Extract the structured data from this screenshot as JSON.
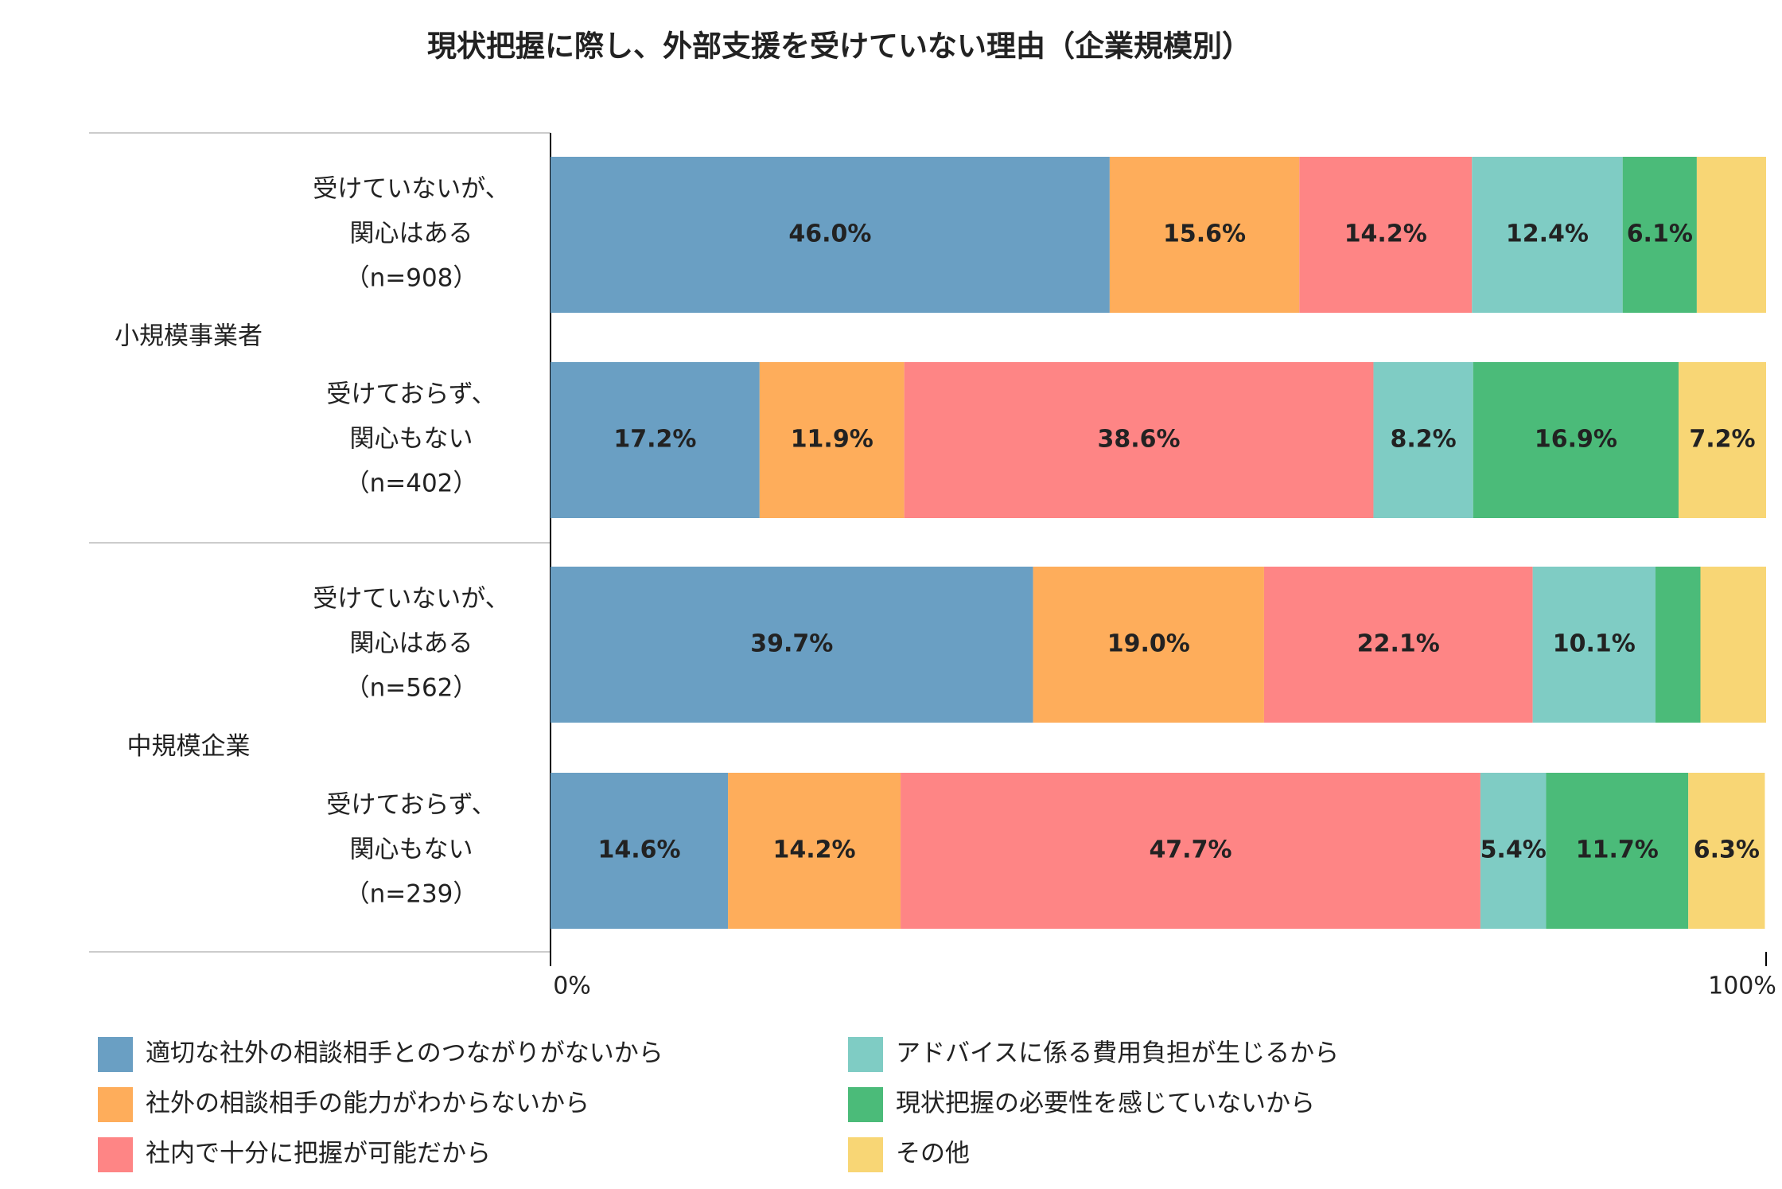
{
  "chart_data": {
    "type": "stacked-barh",
    "title": "現状把握に際し、外部支援を受けていない理由（企業規模別）",
    "groups": [
      "小規模事業者",
      "中規模企業"
    ],
    "categories": [
      [
        "受けていないが、",
        "関心はある",
        "（n=908）"
      ],
      [
        "受けておらず、",
        "関心もない",
        "（n=402）"
      ],
      [
        "受けていないが、",
        "関心はある",
        "（n=562）"
      ],
      [
        "受けておらず、",
        "関心もない",
        "（n=239）"
      ]
    ],
    "series": [
      {
        "name": "適切な社外の相談相手とのつながりがないから",
        "color": "#6a9fc3",
        "values": [
          46.0,
          17.2,
          39.7,
          14.6
        ],
        "value_labels": [
          "46.0%",
          "17.2%",
          "39.7%",
          "14.6%"
        ]
      },
      {
        "name": "社外の相談相手の能力がわからないから",
        "color": "#fead5b",
        "values": [
          15.6,
          11.9,
          19.0,
          14.2
        ],
        "value_labels": [
          "15.6%",
          "11.9%",
          "19.0%",
          "14.2%"
        ]
      },
      {
        "name": "社内で十分に把握が可能だから",
        "color": "#fe8585",
        "values": [
          14.2,
          38.6,
          22.1,
          47.7
        ],
        "value_labels": [
          "14.2%",
          "38.6%",
          "22.1%",
          "47.7%"
        ]
      },
      {
        "name": "アドバイスに係る費用負担が生じるから",
        "color": "#7fccc4",
        "values": [
          12.4,
          8.2,
          10.1,
          5.4
        ],
        "value_labels": [
          "12.4%",
          "8.2%",
          "10.1%",
          "5.4%"
        ]
      },
      {
        "name": "現状把握の必要性を感じていないから",
        "color": "#4bbb79",
        "values": [
          6.1,
          16.9,
          3.7,
          11.7
        ],
        "value_labels": [
          "6.1%",
          "16.9%",
          null,
          "11.7%"
        ]
      },
      {
        "name": "その他",
        "color": "#f8d675",
        "values": [
          5.7,
          7.2,
          5.4,
          6.3
        ],
        "value_labels": [
          null,
          "7.2%",
          null,
          "6.3%"
        ]
      }
    ],
    "xlim": [
      0,
      100
    ],
    "xticks": [
      {
        "value": 0,
        "label": "0%"
      },
      {
        "value": 100,
        "label": "100%"
      }
    ]
  }
}
